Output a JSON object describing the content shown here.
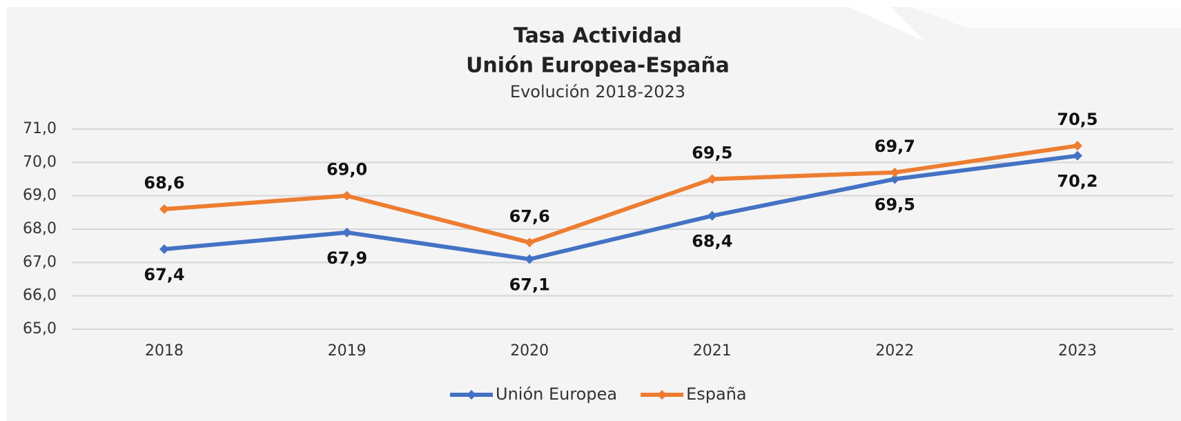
{
  "chart_data": {
    "type": "line",
    "title": "Tasa Actividad",
    "subtitle": "Unión Europea-España",
    "caption": "Evolución 2018-2023",
    "categories": [
      "2018",
      "2019",
      "2020",
      "2021",
      "2022",
      "2023"
    ],
    "series": [
      {
        "name": "Unión Europea",
        "color": "#4472c4",
        "values": [
          67.4,
          67.9,
          67.1,
          68.4,
          69.5,
          70.2
        ],
        "value_labels": [
          "67,4",
          "67,9",
          "67,1",
          "68,4",
          "69,5",
          "70,2"
        ]
      },
      {
        "name": "España",
        "color": "#ed7d31",
        "values": [
          68.6,
          69.0,
          67.6,
          69.5,
          69.7,
          70.5
        ],
        "value_labels": [
          "68,6",
          "69,0",
          "67,6",
          "69,5",
          "69,7",
          "70,5"
        ]
      }
    ],
    "ylim": [
      65,
      71
    ],
    "yticks": [
      {
        "value": 65,
        "label": "65,0"
      },
      {
        "value": 66,
        "label": "66,0"
      },
      {
        "value": 67,
        "label": "67,0"
      },
      {
        "value": 68,
        "label": "68,0"
      },
      {
        "value": 69,
        "label": "69,0"
      },
      {
        "value": 70,
        "label": "70,0"
      },
      {
        "value": 71,
        "label": "71,0"
      }
    ],
    "grid": true,
    "legend": "bottom"
  }
}
